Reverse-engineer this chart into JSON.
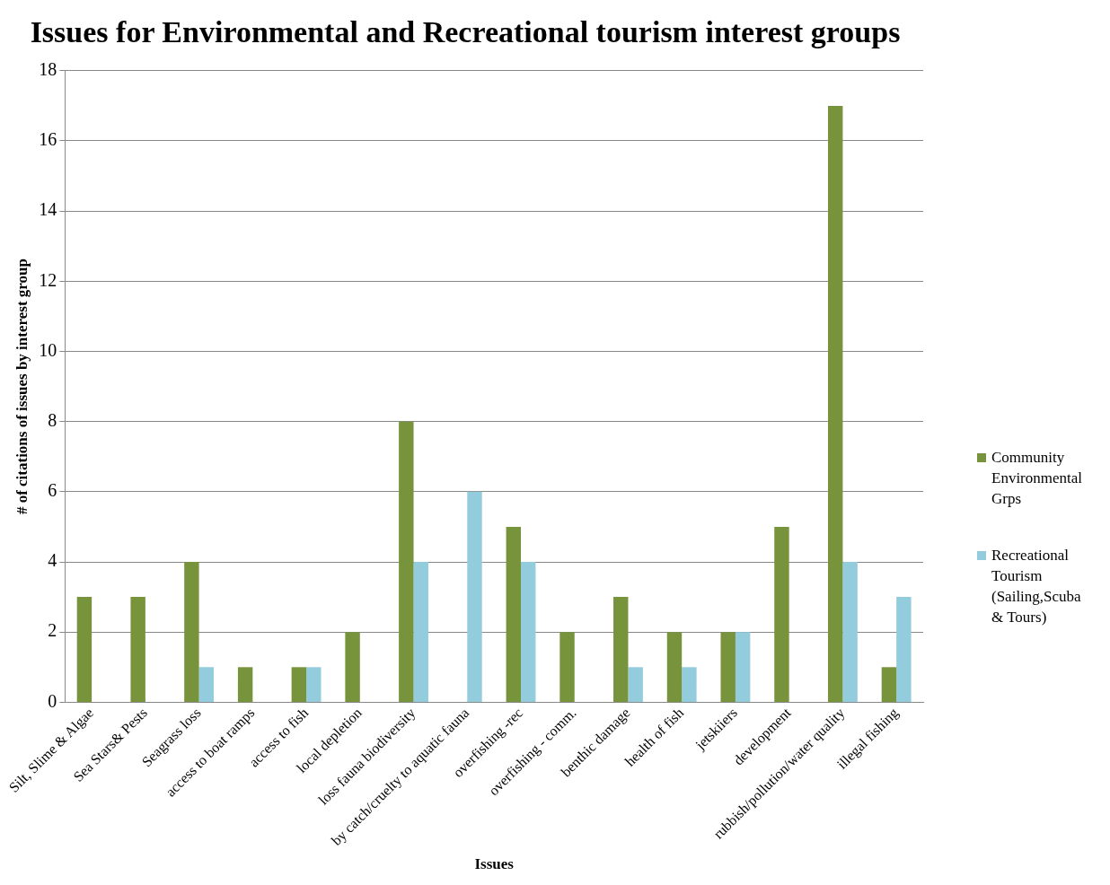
{
  "chart_data": {
    "type": "bar",
    "title": "Issues for Environmental and Recreational tourism interest groups",
    "xlabel": "Issues",
    "ylabel": "# of citations of issues by interest group",
    "categories": [
      "Silt, Slime & Algae",
      "Sea Stars& Pests",
      "Seagrass loss",
      "access to boat ramps",
      "access to fish",
      "local depletion",
      "loss fauna biodiversity",
      "by catch/cruelty to aquatic fauna",
      "overfishing -rec",
      "overfishing - comm.",
      "benthic damage",
      "health of fish",
      "jetskiiers",
      "development",
      "rubbish/pollution/water quality",
      "illegal fishing"
    ],
    "series": [
      {
        "name": "Community Environmental Grps",
        "color": "#77933c",
        "values": [
          3,
          3,
          4,
          1,
          1,
          2,
          8,
          0,
          5,
          2,
          3,
          2,
          2,
          5,
          17,
          1
        ]
      },
      {
        "name": "Recreational Tourism (Sailing,Scuba & Tours)",
        "color": "#93cddd",
        "values": [
          0,
          0,
          1,
          0,
          1,
          0,
          4,
          6,
          4,
          0,
          1,
          1,
          2,
          0,
          4,
          3
        ]
      }
    ],
    "ylim": [
      0,
      18
    ],
    "yticks": [
      0,
      2,
      4,
      6,
      8,
      10,
      12,
      14,
      16,
      18
    ],
    "grid": "y",
    "legend": "right"
  }
}
